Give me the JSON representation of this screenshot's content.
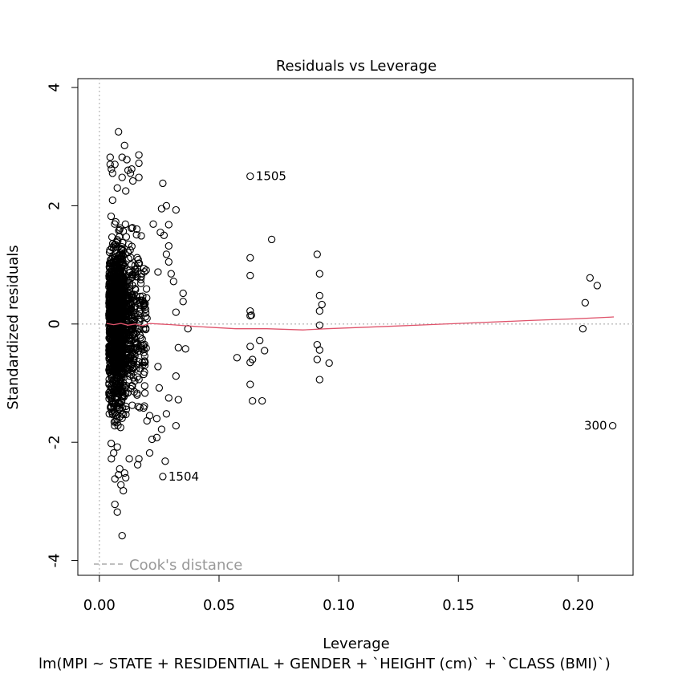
{
  "chart_data": {
    "type": "scatter",
    "title": "Residuals vs Leverage",
    "xlabel": "Leverage",
    "ylabel": "Standardized residuals",
    "sublabel": "lm(MPI ~ STATE + RESIDENTIAL + GENDER + `HEIGHT (cm)` + `CLASS (BMI)`)",
    "xlim": [
      -0.009,
      0.223
    ],
    "ylim": [
      -4.25,
      4.15
    ],
    "xticks": [
      0.0,
      0.05,
      0.1,
      0.15,
      0.2
    ],
    "xtick_labels": [
      "0.00",
      "0.05",
      "0.10",
      "0.15",
      "0.20"
    ],
    "yticks": [
      -4,
      -2,
      0,
      2,
      4
    ],
    "ytick_labels": [
      "-4",
      "-2",
      "0",
      "2",
      "4"
    ],
    "legend": {
      "label": "Cook's distance",
      "placement": "bottom-left",
      "color": "#999999"
    },
    "point_color": "#000000",
    "smooth_color": "#df536b",
    "reference_line_color": "#bbbbbb",
    "labeled_points": [
      {
        "x": 0.063,
        "y": 2.5,
        "label": "1505",
        "side": "right"
      },
      {
        "x": 0.0265,
        "y": -2.58,
        "label": "1504",
        "side": "right"
      },
      {
        "x": 0.2145,
        "y": -1.72,
        "label": "300",
        "side": "left"
      }
    ],
    "smooth": {
      "x": [
        0.003,
        0.006,
        0.009,
        0.012,
        0.015,
        0.018,
        0.021,
        0.025,
        0.03,
        0.04,
        0.057,
        0.07,
        0.085,
        0.095,
        0.12,
        0.15,
        0.18,
        0.2,
        0.215
      ],
      "y": [
        0.01,
        -0.01,
        0.01,
        -0.02,
        0.0,
        -0.03,
        0.01,
        0.0,
        -0.01,
        -0.04,
        -0.08,
        -0.08,
        -0.1,
        -0.08,
        -0.04,
        0.01,
        0.06,
        0.09,
        0.12
      ]
    },
    "points": [
      [
        0.063,
        1.12
      ],
      [
        0.063,
        0.82
      ],
      [
        0.063,
        0.22
      ],
      [
        0.063,
        0.14
      ],
      [
        0.063,
        -0.38
      ],
      [
        0.063,
        -0.65
      ],
      [
        0.063,
        -1.02
      ],
      [
        0.064,
        -1.3
      ],
      [
        0.064,
        -0.6
      ],
      [
        0.0635,
        0.15
      ],
      [
        0.0575,
        -0.57
      ],
      [
        0.067,
        -0.28
      ],
      [
        0.068,
        -1.3
      ],
      [
        0.069,
        -0.45
      ],
      [
        0.072,
        1.43
      ],
      [
        0.063,
        2.5
      ],
      [
        0.091,
        1.18
      ],
      [
        0.092,
        0.85
      ],
      [
        0.092,
        0.48
      ],
      [
        0.093,
        0.33
      ],
      [
        0.092,
        0.22
      ],
      [
        0.092,
        -0.02
      ],
      [
        0.091,
        -0.35
      ],
      [
        0.092,
        -0.44
      ],
      [
        0.091,
        -0.6
      ],
      [
        0.096,
        -0.66
      ],
      [
        0.092,
        -0.94
      ],
      [
        0.205,
        0.78
      ],
      [
        0.208,
        0.65
      ],
      [
        0.203,
        0.36
      ],
      [
        0.202,
        -0.08
      ],
      [
        0.2145,
        -1.72
      ],
      [
        0.0265,
        -2.58
      ],
      [
        0.0275,
        -2.32
      ],
      [
        0.0265,
        2.38
      ],
      [
        0.027,
        1.5
      ],
      [
        0.028,
        1.18
      ],
      [
        0.029,
        1.05
      ],
      [
        0.03,
        0.85
      ],
      [
        0.031,
        0.72
      ],
      [
        0.032,
        0.2
      ],
      [
        0.033,
        -0.4
      ],
      [
        0.032,
        -0.88
      ],
      [
        0.033,
        -1.28
      ],
      [
        0.032,
        -1.72
      ],
      [
        0.029,
        -1.25
      ],
      [
        0.028,
        -1.52
      ],
      [
        0.035,
        0.52
      ],
      [
        0.035,
        0.38
      ],
      [
        0.036,
        -0.42
      ],
      [
        0.037,
        -0.08
      ],
      [
        0.028,
        2.0
      ],
      [
        0.032,
        1.93
      ],
      [
        0.026,
        1.95
      ],
      [
        0.029,
        1.68
      ],
      [
        0.029,
        1.32
      ],
      [
        0.0255,
        1.55
      ],
      [
        0.025,
        -1.08
      ],
      [
        0.026,
        -1.78
      ],
      [
        0.024,
        -1.6
      ],
      [
        0.024,
        -1.92
      ],
      [
        0.022,
        -1.95
      ],
      [
        0.0245,
        -0.72
      ],
      [
        0.0225,
        1.69
      ],
      [
        0.0245,
        0.88
      ],
      [
        0.021,
        -2.18
      ],
      [
        0.021,
        -1.55
      ],
      [
        0.0185,
        -1.42
      ],
      [
        0.0165,
        -2.28
      ],
      [
        0.016,
        -2.38
      ],
      [
        0.0165,
        2.86
      ],
      [
        0.0165,
        2.72
      ],
      [
        0.0165,
        2.48
      ],
      [
        0.014,
        2.42
      ],
      [
        0.013,
        2.55
      ],
      [
        0.0135,
        2.62
      ],
      [
        0.0115,
        2.78
      ],
      [
        0.0105,
        3.02
      ],
      [
        0.008,
        3.25
      ],
      [
        0.0095,
        2.48
      ],
      [
        0.012,
        2.6
      ],
      [
        0.011,
        2.25
      ],
      [
        0.0075,
        2.3
      ],
      [
        0.005,
        2.62
      ],
      [
        0.0045,
        2.82
      ],
      [
        0.0045,
        2.7
      ],
      [
        0.0065,
        2.7
      ],
      [
        0.0055,
        2.55
      ],
      [
        0.0095,
        2.82
      ],
      [
        0.0065,
        -3.05
      ],
      [
        0.0075,
        -3.18
      ],
      [
        0.0095,
        -3.58
      ],
      [
        0.01,
        -2.82
      ],
      [
        0.009,
        -2.72
      ],
      [
        0.0065,
        -2.62
      ],
      [
        0.008,
        -2.55
      ],
      [
        0.0105,
        -2.52
      ],
      [
        0.011,
        -2.6
      ],
      [
        0.0085,
        -2.45
      ],
      [
        0.0125,
        -2.28
      ],
      [
        0.005,
        -2.28
      ],
      [
        0.006,
        -2.18
      ],
      [
        0.0075,
        -2.08
      ]
    ],
    "cluster": {
      "count": 1500,
      "x_range": [
        0.003,
        0.02
      ],
      "y_range": [
        -2.1,
        2.35
      ],
      "density": "highest near leverage 0.005-0.01, thinning toward 0.02"
    }
  }
}
